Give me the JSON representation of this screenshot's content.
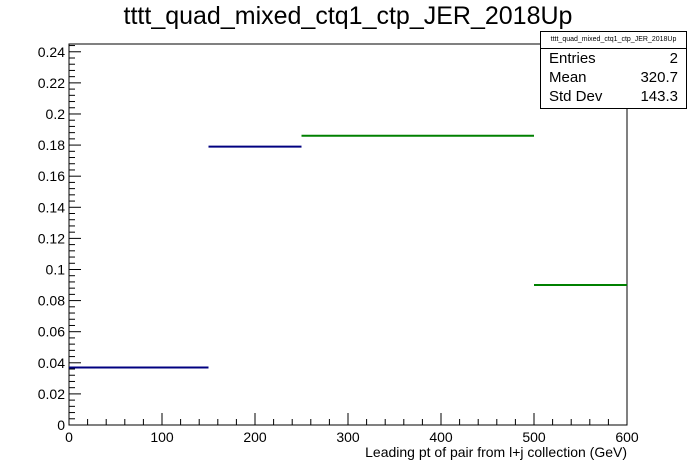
{
  "chart_data": {
    "type": "bar",
    "title": "tttt_quad_mixed_ctq1_ctp_JER_2018Up",
    "xlabel": "Leading pt of pair from l+j collection (GeV)",
    "ylabel": "",
    "xlim": [
      0,
      600
    ],
    "ylim": [
      0,
      0.245
    ],
    "x_ticks": [
      0,
      100,
      200,
      300,
      400,
      500,
      600
    ],
    "x_tick_labels": [
      "0",
      "100",
      "200",
      "300",
      "400",
      "500",
      "600"
    ],
    "y_ticks": [
      0,
      0.02,
      0.04,
      0.06,
      0.08,
      0.1,
      0.12,
      0.14,
      0.16,
      0.18,
      0.2,
      0.22,
      0.24
    ],
    "y_tick_labels": [
      "0",
      "0.02",
      "0.04",
      "0.06",
      "0.08",
      "0.1",
      "0.12",
      "0.14",
      "0.16",
      "0.18",
      "0.2",
      "0.22",
      "0.24"
    ],
    "grid": false,
    "series": [
      {
        "color": "#000080",
        "bins": [
          {
            "x_low": 0,
            "x_high": 150,
            "value": 0.037
          },
          {
            "x_low": 150,
            "x_high": 250,
            "value": 0.179
          }
        ]
      },
      {
        "color": "#008000",
        "bins": [
          {
            "x_low": 250,
            "x_high": 500,
            "value": 0.186
          },
          {
            "x_low": 500,
            "x_high": 600,
            "value": 0.09
          }
        ]
      }
    ],
    "stats_box": {
      "title": "tttt_quad_mixed_ctq1_ctp_JER_2018Up",
      "rows": [
        {
          "label": "Entries",
          "value": "2"
        },
        {
          "label": "Mean",
          "value": "320.7"
        },
        {
          "label": "Std Dev",
          "value": "143.3"
        }
      ]
    }
  }
}
